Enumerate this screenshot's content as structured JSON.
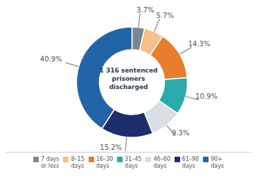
{
  "chart_data": {
    "type": "pie",
    "annotations": [
      "1 316 sentenced",
      "prisoners",
      "discharged"
    ],
    "categories": [
      "7 days\nor less",
      "8–15\ndays",
      "16–30\ndays",
      "31–45\ndays",
      "46–60\ndays",
      "61–90\ndays",
      "90+\ndays"
    ],
    "values": [
      3.7,
      5.7,
      14.3,
      10.9,
      9.3,
      15.2,
      40.9
    ],
    "value_labels": [
      "3.7%",
      "5.7%",
      "14.3%",
      "10.9%",
      "9.3%",
      "15.2%",
      "40.9%"
    ],
    "colors": [
      "#7a8694",
      "#f5c189",
      "#e87d2b",
      "#2aabaa",
      "#d8dde6",
      "#1e2d6b",
      "#2165a8"
    ],
    "data_labels": true,
    "legend": "bottom"
  }
}
